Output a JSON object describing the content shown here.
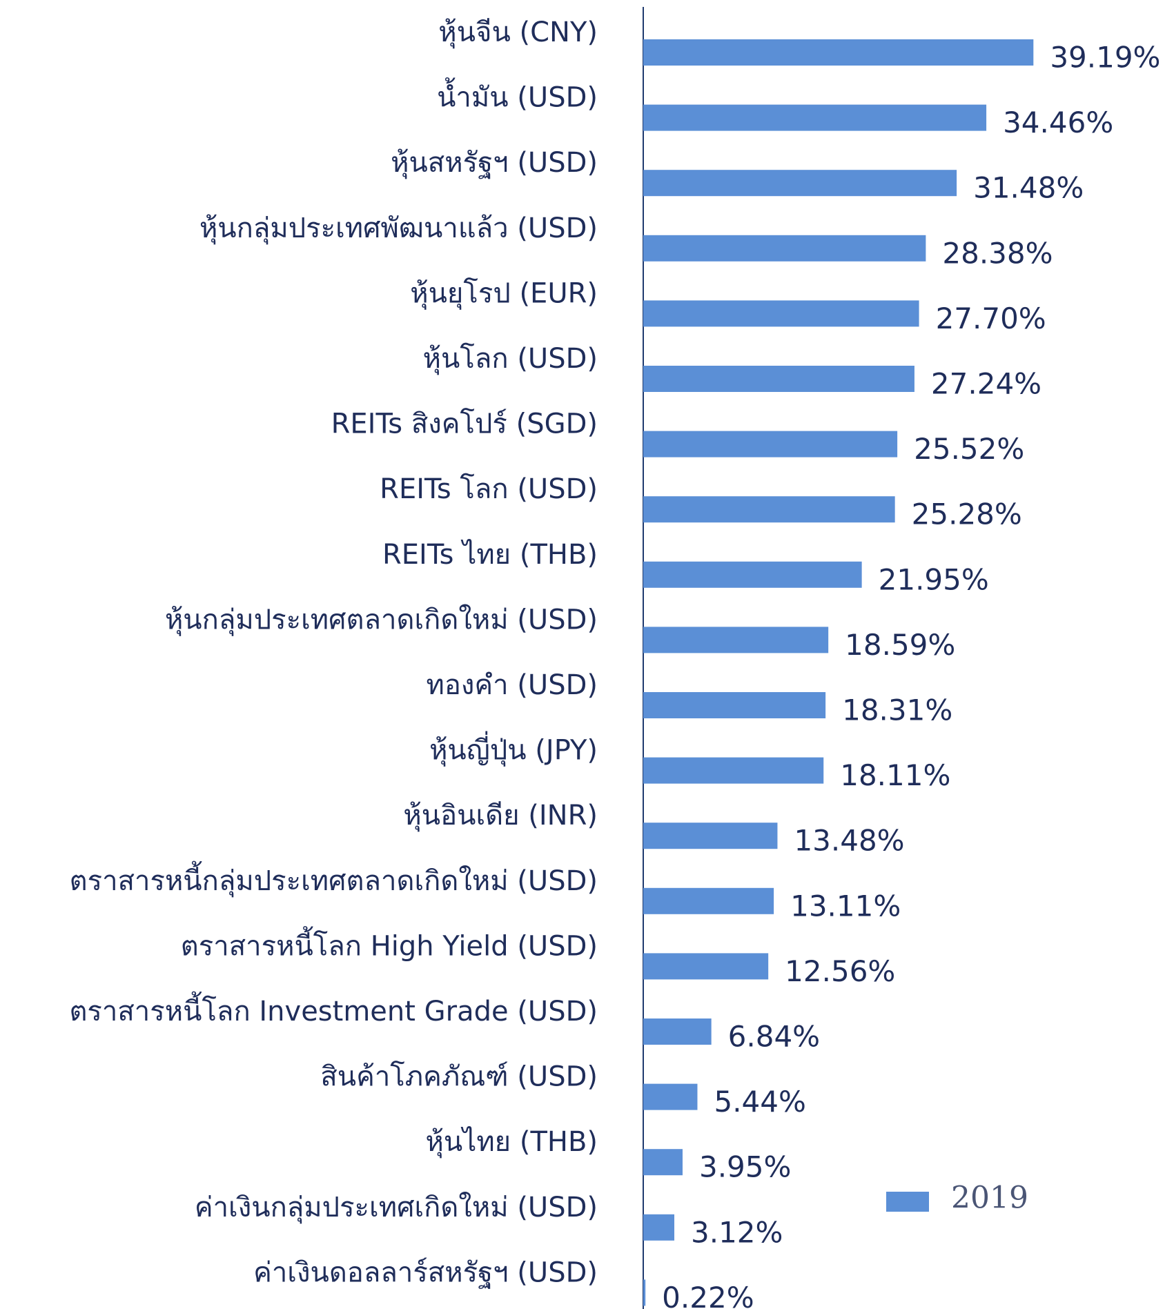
{
  "chart_data": {
    "type": "barh",
    "categories": [
      "หุ้นจีน (CNY)",
      "น้ำมัน (USD)",
      "หุ้นสหรัฐฯ (USD)",
      "หุ้นกลุ่มประเทศพัฒนาแล้ว (USD)",
      "หุ้นยุโรป (EUR)",
      "หุ้นโลก (USD)",
      "REITs สิงคโปร์ (SGD)",
      "REITs โลก (USD)",
      "REITs ไทย (THB)",
      "หุ้นกลุ่มประเทศตลาดเกิดใหม่ (USD)",
      "ทองคำ (USD)",
      "หุ้นญี่ปุ่น (JPY)",
      "หุ้นอินเดีย (INR)",
      "ตราสารหนี้กลุ่มประเทศตลาดเกิดใหม่ (USD)",
      "ตราสารหนี้โลก High Yield (USD)",
      "ตราสารหนี้โลก Investment Grade (USD)",
      "สินค้าโภคภัณฑ์ (USD)",
      "หุ้นไทย (THB)",
      "ค่าเงินกลุ่มประเทศเกิดใหม่ (USD)",
      "ค่าเงินดอลลาร์สหรัฐฯ (USD)"
    ],
    "series": [
      {
        "name": "2019",
        "color": "#5b8fd6",
        "values": [
          39.19,
          34.46,
          31.48,
          28.38,
          27.7,
          27.24,
          25.52,
          25.28,
          21.95,
          18.59,
          18.31,
          18.11,
          13.48,
          13.11,
          12.56,
          6.84,
          5.44,
          3.95,
          3.12,
          0.22
        ],
        "value_labels": [
          "39.19%",
          "34.46%",
          "31.48%",
          "28.38%",
          "27.70%",
          "27.24%",
          "25.52%",
          "25.28%",
          "21.95%",
          "18.59%",
          "18.31%",
          "18.11%",
          "13.48%",
          "13.11%",
          "12.56%",
          "6.84%",
          "5.44%",
          "3.95%",
          "3.12%",
          "0.22%"
        ]
      }
    ],
    "xlim": [
      0,
      40
    ],
    "legend": "lower right"
  }
}
